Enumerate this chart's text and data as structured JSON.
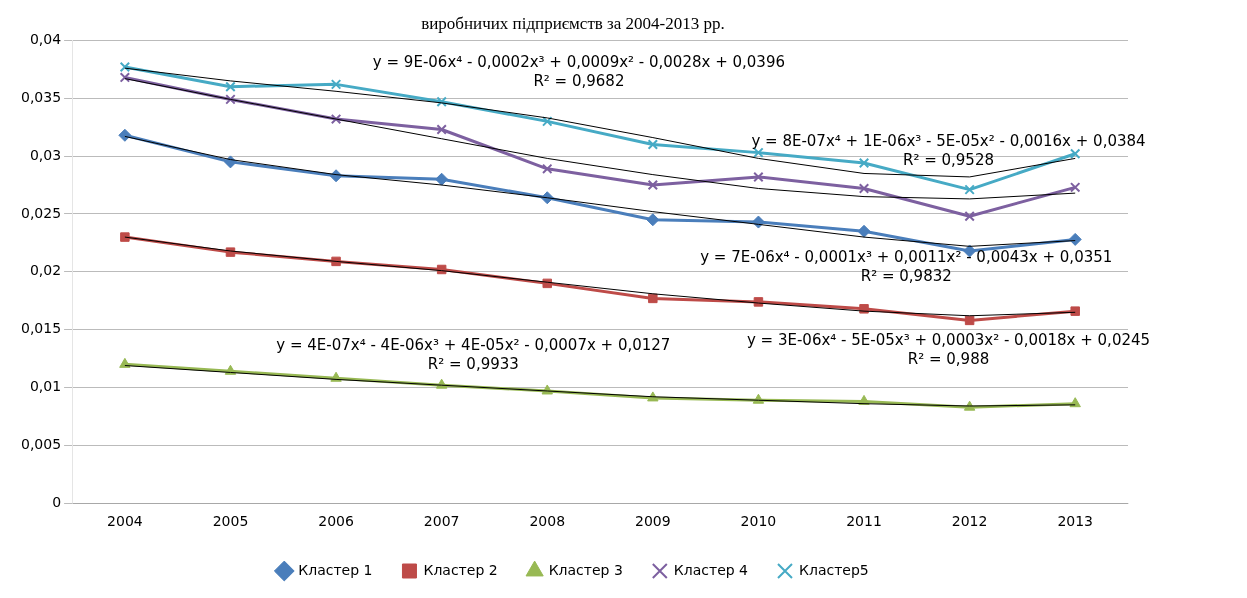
{
  "chart_data": {
    "type": "line",
    "title": "виробничих підприємств за 2004-2013 рр.",
    "categories": [
      "2004",
      "2005",
      "2006",
      "2007",
      "2008",
      "2009",
      "2010",
      "2011",
      "2012",
      "2013"
    ],
    "ylim": [
      0,
      0.04
    ],
    "yticks": [
      {
        "value": 0,
        "label": "0"
      },
      {
        "value": 0.005,
        "label": "0,005"
      },
      {
        "value": 0.01,
        "label": "0,01"
      },
      {
        "value": 0.015,
        "label": "0,015"
      },
      {
        "value": 0.02,
        "label": "0,02"
      },
      {
        "value": 0.025,
        "label": "0,025"
      },
      {
        "value": 0.03,
        "label": "0,03"
      },
      {
        "value": 0.035,
        "label": "0,035"
      },
      {
        "value": 0.04,
        "label": "0,04"
      }
    ],
    "grid": "y",
    "legend": "bottom",
    "line_style": "solid",
    "series": [
      {
        "name": "Кластер 1",
        "color": "#4a7ebb",
        "marker": "diamond",
        "values": [
          0.0318,
          0.0295,
          0.0283,
          0.028,
          0.0264,
          0.0245,
          0.0243,
          0.0235,
          0.0218,
          0.0228
        ]
      },
      {
        "name": "Кластер 2",
        "color": "#be4b48",
        "marker": "square",
        "values": [
          0.023,
          0.0217,
          0.0209,
          0.0202,
          0.019,
          0.0177,
          0.0174,
          0.0168,
          0.0158,
          0.0166
        ]
      },
      {
        "name": "Кластер 3",
        "color": "#98b954",
        "marker": "triangle",
        "values": [
          0.012,
          0.0114,
          0.0108,
          0.0102,
          0.0097,
          0.0091,
          0.0089,
          0.0088,
          0.0083,
          0.0086
        ]
      },
      {
        "name": "Кластер 4",
        "color": "#7d60a0",
        "marker": "cross",
        "values": [
          0.0368,
          0.0349,
          0.0332,
          0.0323,
          0.0289,
          0.0275,
          0.0282,
          0.0272,
          0.0248,
          0.0273
        ]
      },
      {
        "name": "Кластер5",
        "color": "#46aac5",
        "marker": "cross",
        "values": [
          0.0377,
          0.036,
          0.0362,
          0.0347,
          0.033,
          0.031,
          0.0303,
          0.0294,
          0.0271,
          0.0302
        ]
      },
      {
        "type": "line",
        "color": "#000000",
        "marker": "none",
        "values": [
          0.0317,
          0.0297,
          0.0284,
          0.0275,
          0.0264,
          0.0252,
          0.0241,
          0.023,
          0.0222,
          0.0227
        ]
      },
      {
        "type": "line",
        "color": "#000000",
        "marker": "none",
        "values": [
          0.023,
          0.0218,
          0.0209,
          0.0201,
          0.0191,
          0.0181,
          0.0173,
          0.0166,
          0.0162,
          0.0165
        ]
      },
      {
        "type": "line",
        "color": "#000000",
        "marker": "none",
        "values": [
          0.0119,
          0.0113,
          0.0107,
          0.0102,
          0.0097,
          0.0092,
          0.0089,
          0.0086,
          0.0084,
          0.0085
        ]
      },
      {
        "type": "line",
        "color": "#000000",
        "marker": "none",
        "values": [
          0.0367,
          0.0349,
          0.0332,
          0.0315,
          0.0298,
          0.0284,
          0.0272,
          0.0265,
          0.0263,
          0.0268
        ]
      },
      {
        "type": "line",
        "color": "#000000",
        "marker": "none",
        "values": [
          0.0376,
          0.0365,
          0.0356,
          0.0346,
          0.0333,
          0.0316,
          0.0298,
          0.0285,
          0.0282,
          0.0298
        ]
      }
    ],
    "annotations": [
      "y = 9E-06x⁴ - 0,0002x³ + 0,0009x² - 0,0028x + 0,0396\nR² = 0,9682",
      "y = 8E-07x⁴ + 1E-06x³ - 5E-05x² - 0,0016x + 0,0384\nR² = 0,9528",
      "y = 7E-06x⁴ - 0,0001x³ + 0,0011x² - 0,0043x + 0,0351\nR² = 0,9832",
      "y = 4E-07x⁴ - 4E-06x³ + 4E-05x² - 0,0007x + 0,0127\nR² = 0,9933",
      "y = 3E-06x⁴ - 5E-05x³ + 0,0003x² - 0,0018x + 0,0245\nR² = 0,988"
    ]
  }
}
